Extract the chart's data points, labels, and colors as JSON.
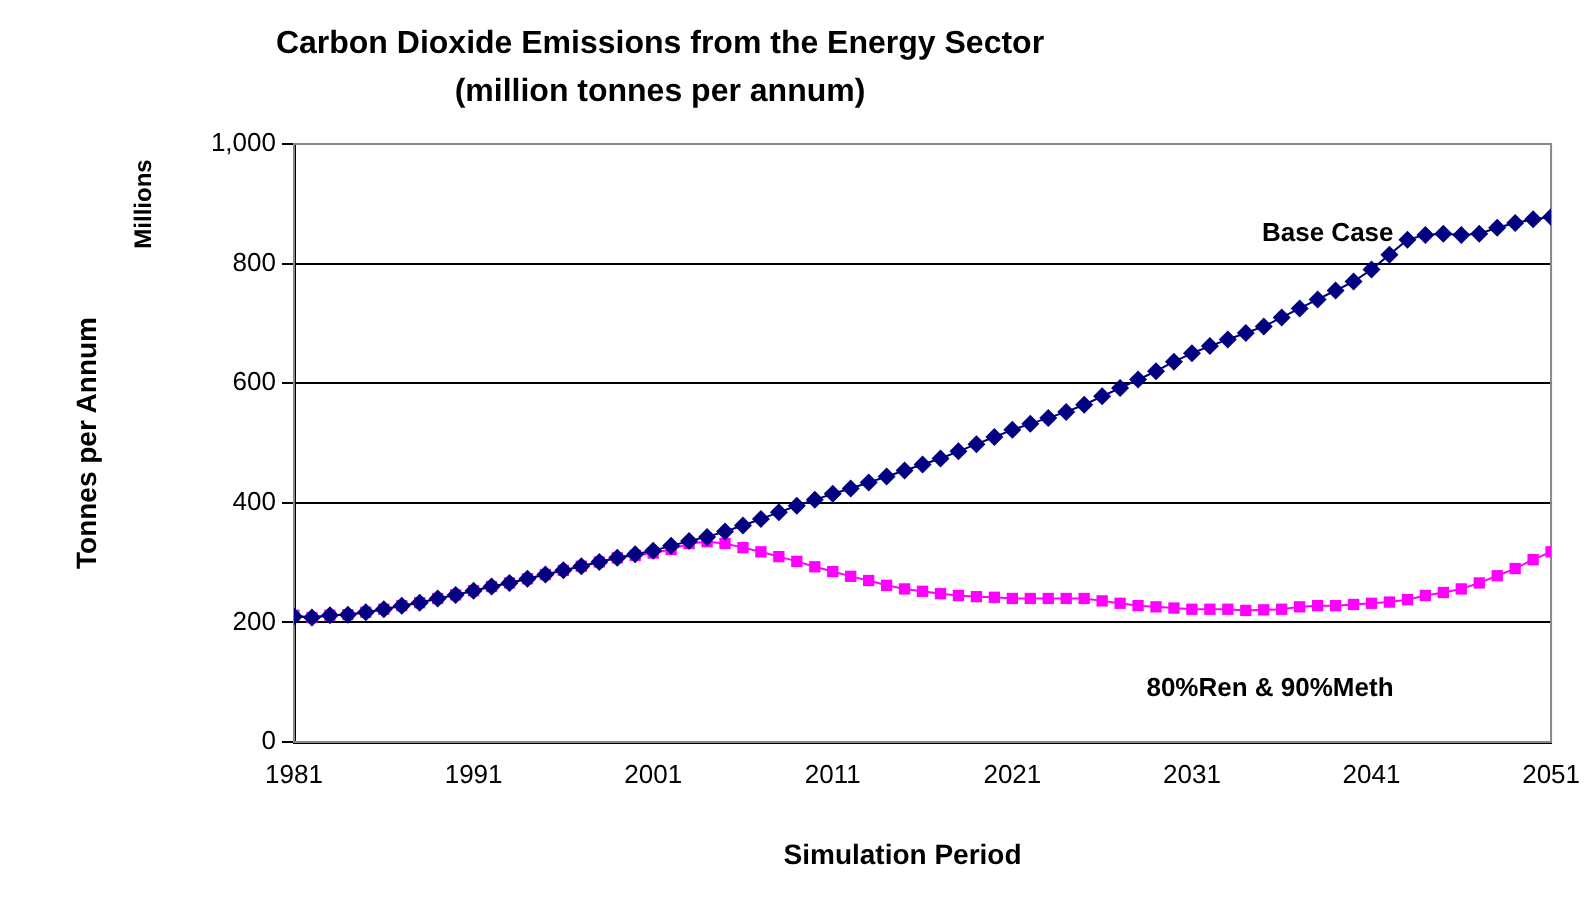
{
  "chart_data": {
    "type": "line",
    "title": "Carbon Dioxide Emissions from the Energy Sector",
    "subtitle": "(million tonnes per annum)",
    "xlabel": "Simulation Period",
    "ylabel": "Tonnes per Annum",
    "annotations": [
      "Millions"
    ],
    "x": [
      1981,
      1982,
      1983,
      1984,
      1985,
      1986,
      1987,
      1988,
      1989,
      1990,
      1991,
      1992,
      1993,
      1994,
      1995,
      1996,
      1997,
      1998,
      1999,
      2000,
      2001,
      2002,
      2003,
      2004,
      2005,
      2006,
      2007,
      2008,
      2009,
      2010,
      2011,
      2012,
      2013,
      2014,
      2015,
      2016,
      2017,
      2018,
      2019,
      2020,
      2021,
      2022,
      2023,
      2024,
      2025,
      2026,
      2027,
      2028,
      2029,
      2030,
      2031,
      2032,
      2033,
      2034,
      2035,
      2036,
      2037,
      2038,
      2039,
      2040,
      2041,
      2042,
      2043,
      2044,
      2045,
      2046,
      2047,
      2048,
      2049,
      2050,
      2051
    ],
    "series": [
      {
        "name": "Base Case",
        "color": "#000080",
        "marker": "diamond",
        "values": [
          210,
          208,
          212,
          213,
          217,
          222,
          228,
          233,
          240,
          246,
          253,
          260,
          266,
          273,
          280,
          287,
          294,
          301,
          308,
          314,
          320,
          328,
          336,
          343,
          352,
          362,
          373,
          384,
          395,
          405,
          415,
          424,
          434,
          444,
          454,
          464,
          474,
          486,
          498,
          510,
          522,
          532,
          542,
          552,
          564,
          578,
          592,
          606,
          620,
          636,
          650,
          662,
          673,
          684,
          695,
          710,
          725,
          740,
          755,
          770,
          790,
          815,
          840,
          848,
          850,
          848,
          850,
          860,
          868,
          874,
          878
        ]
      },
      {
        "name": "80%Ren & 90%Meth",
        "color": "#ff00ff",
        "marker": "square",
        "values": [
          212,
          208,
          212,
          213,
          217,
          222,
          228,
          233,
          240,
          246,
          253,
          260,
          266,
          273,
          280,
          287,
          294,
          301,
          308,
          312,
          316,
          322,
          332,
          335,
          332,
          325,
          318,
          310,
          302,
          293,
          285,
          277,
          270,
          262,
          256,
          252,
          248,
          245,
          243,
          242,
          240,
          240,
          240,
          240,
          240,
          236,
          232,
          228,
          226,
          224,
          222,
          222,
          222,
          220,
          221,
          222,
          226,
          228,
          228,
          230,
          232,
          234,
          238,
          245,
          250,
          256,
          266,
          278,
          290,
          305,
          318
        ]
      }
    ],
    "xlim": [
      1981,
      2051
    ],
    "xticks": [
      1981,
      1991,
      2001,
      2011,
      2021,
      2031,
      2041,
      2051
    ],
    "ylim": [
      0,
      1000
    ],
    "yticks": [
      0,
      200,
      400,
      600,
      800,
      {
        "value": 1000,
        "label": "1,000"
      }
    ],
    "grid": "y",
    "legend": false
  }
}
